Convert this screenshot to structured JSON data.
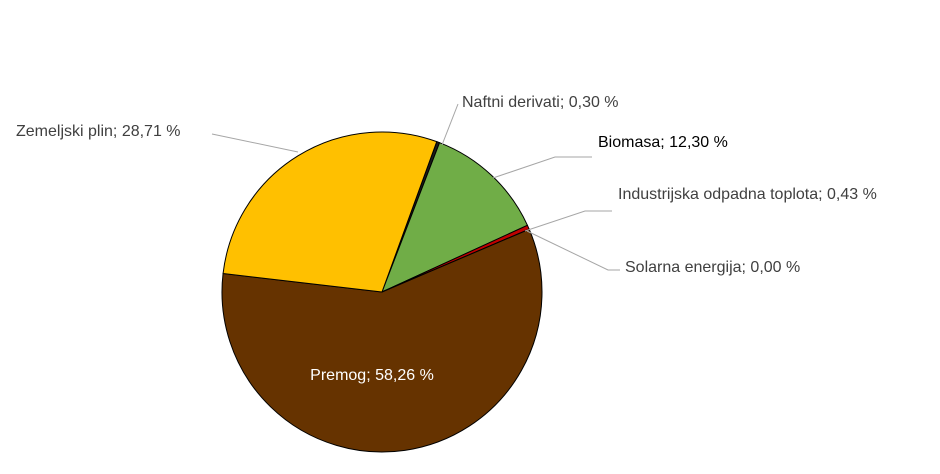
{
  "chart_data": {
    "type": "pie",
    "categories": [
      "Naftni derivati",
      "Biomasa",
      "Industrijska odpadna toplota",
      "Solarna energija",
      "Premog",
      "Zemeljski plin"
    ],
    "values": [
      0.3,
      12.3,
      0.43,
      0.0,
      58.26,
      28.71
    ],
    "value_labels": [
      "0,30 %",
      "12,30 %",
      "0,43 %",
      "0,00 %",
      "58,26 %",
      "28,71 %"
    ],
    "label_separator": "; ",
    "colors": [
      "#1a1a1a",
      "#70ad47",
      "#c00000",
      "#ffff00",
      "#663300",
      "#ffc000"
    ]
  }
}
